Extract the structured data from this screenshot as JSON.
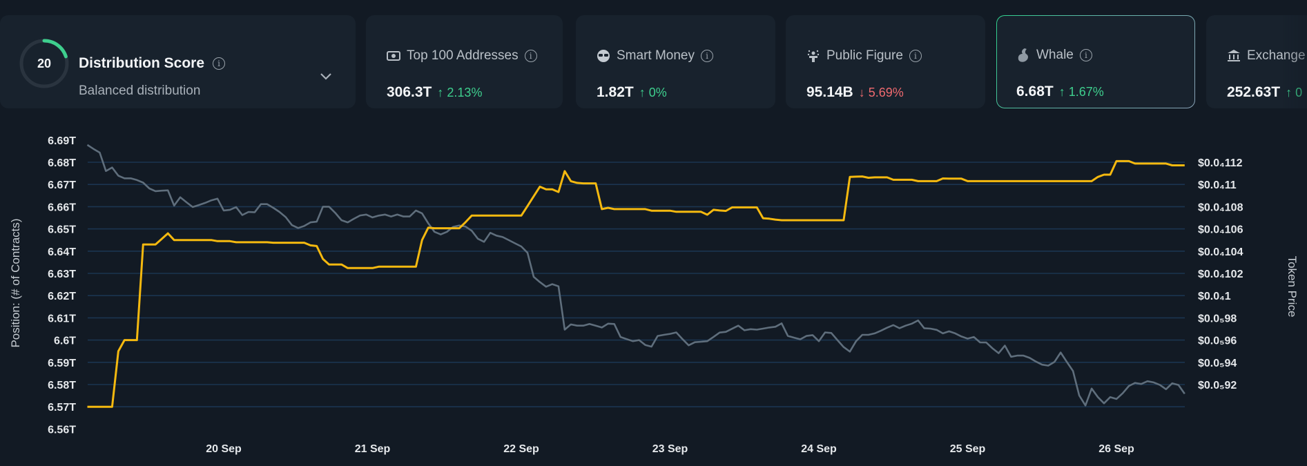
{
  "score_card": {
    "score": "20",
    "score_fraction": 0.2,
    "title": "Distribution Score",
    "subtitle": "Balanced distribution",
    "icon": "chevron-down-icon"
  },
  "cards": [
    {
      "label": "Top 100 Addresses",
      "icon": "banknote-icon",
      "value": "306.3T",
      "change": "2.13%",
      "direction": "up"
    },
    {
      "label": "Smart Money",
      "icon": "sunglasses-icon",
      "value": "1.82T",
      "change": "0%",
      "direction": "up"
    },
    {
      "label": "Public Figure",
      "icon": "podium-icon",
      "value": "95.14B",
      "change": "5.69%",
      "direction": "down"
    },
    {
      "label": "Whale",
      "icon": "whale-icon",
      "value": "6.68T",
      "change": "1.67%",
      "direction": "up",
      "selected": true
    },
    {
      "label": "Exchange",
      "icon": "bank-icon",
      "value": "252.63T",
      "change": "0",
      "direction": "up"
    }
  ],
  "colors": {
    "background": "#121a24",
    "card": "#18222d",
    "up": "#3ecf8e",
    "down": "#f06a6f",
    "position_line": "#f5b90f",
    "price_line": "#5f6e7c",
    "grid": "#1b3550"
  },
  "chart_data": {
    "type": "line",
    "grid": true,
    "ylabel": "Position: (# of Contracts)",
    "ylabel_right": "Token Price",
    "y_ticks": [
      {
        "value": 6.69,
        "label": "6.69T"
      },
      {
        "value": 6.68,
        "label": "6.68T"
      },
      {
        "value": 6.67,
        "label": "6.67T"
      },
      {
        "value": 6.66,
        "label": "6.66T"
      },
      {
        "value": 6.65,
        "label": "6.65T"
      },
      {
        "value": 6.64,
        "label": "6.64T"
      },
      {
        "value": 6.63,
        "label": "6.63T"
      },
      {
        "value": 6.62,
        "label": "6.62T"
      },
      {
        "value": 6.61,
        "label": "6.61T"
      },
      {
        "value": 6.6,
        "label": "6.6T"
      },
      {
        "value": 6.59,
        "label": "6.59T"
      },
      {
        "value": 6.58,
        "label": "6.58T"
      },
      {
        "value": 6.57,
        "label": "6.57T"
      },
      {
        "value": 6.56,
        "label": "6.56T"
      }
    ],
    "ylim": [
      6.56,
      6.69
    ],
    "y_right_ticks": [
      {
        "value": 1.12e-05,
        "label": "$0.0₄112"
      },
      {
        "value": 1.1e-05,
        "label": "$0.0₄11"
      },
      {
        "value": 1.08e-05,
        "label": "$0.0₄108"
      },
      {
        "value": 1.06e-05,
        "label": "$0.0₄106"
      },
      {
        "value": 1.04e-05,
        "label": "$0.0₄104"
      },
      {
        "value": 1.02e-05,
        "label": "$0.0₄102"
      },
      {
        "value": 1e-05,
        "label": "$0.0₄1"
      },
      {
        "value": 9.8e-06,
        "label": "$0.0₅98"
      },
      {
        "value": 9.6e-06,
        "label": "$0.0₅96"
      },
      {
        "value": 9.4e-06,
        "label": "$0.0₅94"
      },
      {
        "value": 9.2e-06,
        "label": "$0.0₅92"
      }
    ],
    "x_ticks": [
      "20 Sep",
      "21 Sep",
      "22 Sep",
      "23 Sep",
      "24 Sep",
      "25 Sep",
      "26 Sep"
    ],
    "x": [
      "19 Sep 02:00",
      "19 Sep 03:00",
      "19 Sep 04:00",
      "19 Sep 05:00",
      "19 Sep 06:00",
      "19 Sep 07:00",
      "19 Sep 08:00",
      "19 Sep 09:00",
      "19 Sep 10:00",
      "19 Sep 11:00",
      "19 Sep 12:00",
      "19 Sep 13:00",
      "19 Sep 14:00",
      "19 Sep 15:00",
      "19 Sep 16:00",
      "19 Sep 17:00",
      "19 Sep 18:00",
      "19 Sep 19:00",
      "19 Sep 20:00",
      "19 Sep 21:00",
      "19 Sep 22:00",
      "19 Sep 23:00",
      "20 Sep 00:00",
      "20 Sep 01:00",
      "20 Sep 02:00",
      "20 Sep 03:00",
      "20 Sep 04:00",
      "20 Sep 05:00",
      "20 Sep 06:00",
      "20 Sep 07:00",
      "20 Sep 08:00",
      "20 Sep 09:00",
      "20 Sep 10:00",
      "20 Sep 11:00",
      "20 Sep 12:00",
      "20 Sep 13:00",
      "20 Sep 14:00",
      "20 Sep 15:00",
      "20 Sep 16:00",
      "20 Sep 17:00",
      "20 Sep 18:00",
      "20 Sep 19:00",
      "20 Sep 20:00",
      "20 Sep 21:00",
      "20 Sep 22:00",
      "20 Sep 23:00",
      "21 Sep 00:00",
      "21 Sep 01:00",
      "21 Sep 02:00",
      "21 Sep 03:00",
      "21 Sep 04:00",
      "21 Sep 05:00",
      "21 Sep 06:00",
      "21 Sep 07:00",
      "21 Sep 08:00",
      "21 Sep 09:00",
      "21 Sep 10:00",
      "21 Sep 11:00",
      "21 Sep 12:00",
      "21 Sep 13:00",
      "21 Sep 14:00",
      "21 Sep 15:00",
      "21 Sep 16:00",
      "21 Sep 17:00",
      "21 Sep 18:00",
      "21 Sep 19:00",
      "21 Sep 20:00",
      "21 Sep 21:00",
      "21 Sep 22:00",
      "21 Sep 23:00",
      "22 Sep 00:00",
      "22 Sep 01:00",
      "22 Sep 02:00",
      "22 Sep 03:00",
      "22 Sep 04:00",
      "22 Sep 05:00",
      "22 Sep 06:00",
      "22 Sep 07:00",
      "22 Sep 08:00",
      "22 Sep 09:00",
      "22 Sep 10:00",
      "22 Sep 11:00",
      "22 Sep 12:00",
      "22 Sep 13:00",
      "22 Sep 14:00",
      "22 Sep 15:00",
      "22 Sep 16:00",
      "22 Sep 17:00",
      "22 Sep 18:00",
      "22 Sep 19:00",
      "22 Sep 20:00",
      "22 Sep 21:00",
      "22 Sep 22:00",
      "22 Sep 23:00",
      "23 Sep 00:00",
      "23 Sep 01:00",
      "23 Sep 02:00",
      "23 Sep 03:00",
      "23 Sep 04:00",
      "23 Sep 05:00",
      "23 Sep 06:00",
      "23 Sep 07:00",
      "23 Sep 08:00",
      "23 Sep 09:00",
      "23 Sep 10:00",
      "23 Sep 11:00",
      "23 Sep 12:00",
      "23 Sep 13:00",
      "23 Sep 14:00",
      "23 Sep 15:00",
      "23 Sep 16:00",
      "23 Sep 17:00",
      "23 Sep 18:00",
      "23 Sep 19:00",
      "23 Sep 20:00",
      "23 Sep 21:00",
      "23 Sep 22:00",
      "23 Sep 23:00",
      "24 Sep 00:00",
      "24 Sep 01:00",
      "24 Sep 02:00",
      "24 Sep 03:00",
      "24 Sep 04:00",
      "24 Sep 05:00",
      "24 Sep 06:00",
      "24 Sep 07:00",
      "24 Sep 08:00",
      "24 Sep 09:00",
      "24 Sep 10:00",
      "24 Sep 11:00",
      "24 Sep 12:00",
      "24 Sep 13:00",
      "24 Sep 14:00",
      "24 Sep 15:00",
      "24 Sep 16:00",
      "24 Sep 17:00",
      "24 Sep 18:00",
      "24 Sep 19:00",
      "24 Sep 20:00",
      "24 Sep 21:00",
      "24 Sep 22:00",
      "24 Sep 23:00",
      "25 Sep 00:00",
      "25 Sep 01:00",
      "25 Sep 02:00",
      "25 Sep 03:00",
      "25 Sep 04:00",
      "25 Sep 05:00",
      "25 Sep 06:00",
      "25 Sep 07:00",
      "25 Sep 08:00",
      "25 Sep 09:00",
      "25 Sep 10:00",
      "25 Sep 11:00",
      "25 Sep 12:00",
      "25 Sep 13:00",
      "25 Sep 14:00",
      "25 Sep 15:00",
      "25 Sep 16:00",
      "25 Sep 17:00",
      "25 Sep 18:00",
      "25 Sep 19:00",
      "25 Sep 20:00",
      "25 Sep 21:00",
      "25 Sep 22:00",
      "25 Sep 23:00",
      "26 Sep 00:00",
      "26 Sep 01:00",
      "26 Sep 02:00",
      "26 Sep 03:00",
      "26 Sep 04:00",
      "26 Sep 05:00",
      "26 Sep 06:00",
      "26 Sep 07:00",
      "26 Sep 08:00",
      "26 Sep 09:00",
      "26 Sep 10:00",
      "26 Sep 11:00"
    ],
    "series": [
      {
        "axis": "left",
        "color": "#f5b90f",
        "values": [
          6.57,
          6.57,
          6.57,
          6.57,
          6.57,
          6.595,
          6.6,
          6.6,
          6.6,
          6.643,
          6.643,
          6.643,
          6.6455,
          6.648,
          6.645,
          6.645,
          6.645,
          6.645,
          6.645,
          6.645,
          6.645,
          6.6445,
          6.6445,
          6.6445,
          6.644,
          6.644,
          6.644,
          6.644,
          6.644,
          6.644,
          6.6438,
          6.6438,
          6.6438,
          6.6438,
          6.6438,
          6.6438,
          6.6426,
          6.6423,
          6.6365,
          6.634,
          6.634,
          6.634,
          6.6324,
          6.6324,
          6.6324,
          6.6324,
          6.6324,
          6.633,
          6.633,
          6.633,
          6.633,
          6.633,
          6.633,
          6.633,
          6.645,
          6.6506,
          6.6503,
          6.6503,
          6.6503,
          6.6503,
          6.6503,
          6.653,
          6.656,
          6.656,
          6.656,
          6.656,
          6.656,
          6.656,
          6.656,
          6.656,
          6.656,
          6.6603,
          6.6647,
          6.669,
          6.6678,
          6.6678,
          6.6666,
          6.676,
          6.6715,
          6.6707,
          6.6705,
          6.6705,
          6.6705,
          6.6589,
          6.6595,
          6.6589,
          6.6589,
          6.6589,
          6.6589,
          6.6589,
          6.6589,
          6.6582,
          6.6582,
          6.6582,
          6.6582,
          6.6577,
          6.6577,
          6.6577,
          6.6577,
          6.6577,
          6.6564,
          6.6586,
          6.6583,
          6.6581,
          6.6597,
          6.6597,
          6.6597,
          6.6597,
          6.6597,
          6.6548,
          6.6546,
          6.6542,
          6.6539,
          6.6539,
          6.6539,
          6.6539,
          6.6539,
          6.6539,
          6.6539,
          6.6539,
          6.6539,
          6.6539,
          6.6539,
          6.6734,
          6.6735,
          6.6736,
          6.673,
          6.6732,
          6.6732,
          6.6732,
          6.6721,
          6.6721,
          6.6721,
          6.6721,
          6.6715,
          6.6715,
          6.6715,
          6.6715,
          6.6727,
          6.6726,
          6.6726,
          6.6726,
          6.6715,
          6.6715,
          6.6715,
          6.6715,
          6.6715,
          6.6715,
          6.6715,
          6.6715,
          6.6715,
          6.6715,
          6.6715,
          6.6715,
          6.6715,
          6.6715,
          6.6715,
          6.6715,
          6.6715,
          6.6715,
          6.6715,
          6.6715,
          6.6715,
          6.6734,
          6.6744,
          6.6744,
          6.6805,
          6.6805,
          6.6805,
          6.6794,
          6.6794,
          6.6794,
          6.6794,
          6.6794,
          6.6794,
          6.6786,
          6.6786,
          6.6786
        ]
      },
      {
        "axis": "right",
        "color": "#5f6e7c",
        "values": [
          1.1356e-05,
          1.132e-05,
          1.1287e-05,
          1.1121e-05,
          1.1153e-05,
          1.1079e-05,
          1.1055e-05,
          1.1055e-05,
          1.104e-05,
          1.1017e-05,
          1.0964e-05,
          1.094e-05,
          1.0944e-05,
          1.0947e-05,
          1.081e-05,
          1.0885e-05,
          1.084e-05,
          1.0797e-05,
          1.0815e-05,
          1.0834e-05,
          1.0857e-05,
          1.0872e-05,
          1.0766e-05,
          1.0772e-05,
          1.0797e-05,
          1.0725e-05,
          1.0753e-05,
          1.075e-05,
          1.0823e-05,
          1.0823e-05,
          1.079e-05,
          1.0753e-05,
          1.0706e-05,
          1.0634e-05,
          1.0608e-05,
          1.0627e-05,
          1.0659e-05,
          1.0665e-05,
          1.08e-05,
          1.08e-05,
          1.0744e-05,
          1.0678e-05,
          1.0659e-05,
          1.0691e-05,
          1.0721e-05,
          1.0729e-05,
          1.0704e-05,
          1.072e-05,
          1.0729e-05,
          1.0712e-05,
          1.0729e-05,
          1.0712e-05,
          1.0712e-05,
          1.0766e-05,
          1.074e-05,
          1.065e-05,
          1.0574e-05,
          1.055e-05,
          1.0574e-05,
          1.0618e-05,
          1.0631e-05,
          1.0621e-05,
          1.0584e-05,
          1.0512e-05,
          1.0484e-05,
          1.0565e-05,
          1.054e-05,
          1.0527e-05,
          1.0499e-05,
          1.047e-05,
          1.0442e-05,
          1.0386e-05,
          1.0169e-05,
          1.0122e-05,
          1.008e-05,
          1.0103e-05,
          1.0084e-05,
          9.694e-06,
          9.741e-06,
          9.73e-06,
          9.73e-06,
          9.745e-06,
          9.73e-06,
          9.713e-06,
          9.748e-06,
          9.745e-06,
          9.628e-06,
          9.609e-06,
          9.59e-06,
          9.6e-06,
          9.556e-06,
          9.541e-06,
          9.637e-06,
          9.647e-06,
          9.656e-06,
          9.669e-06,
          9.609e-06,
          9.553e-06,
          9.581e-06,
          9.585e-06,
          9.59e-06,
          9.628e-06,
          9.668e-06,
          9.674e-06,
          9.702e-06,
          9.73e-06,
          9.688e-06,
          9.698e-06,
          9.694e-06,
          9.703e-06,
          9.713e-06,
          9.72e-06,
          9.75e-06,
          9.637e-06,
          9.622e-06,
          9.607e-06,
          9.637e-06,
          9.645e-06,
          9.59e-06,
          9.669e-06,
          9.664e-06,
          9.6e-06,
          9.537e-06,
          9.496e-06,
          9.59e-06,
          9.647e-06,
          9.647e-06,
          9.66e-06,
          9.684e-06,
          9.711e-06,
          9.735e-06,
          9.707e-06,
          9.73e-06,
          9.748e-06,
          9.777e-06,
          9.707e-06,
          9.703e-06,
          9.692e-06,
          9.66e-06,
          9.679e-06,
          9.66e-06,
          9.632e-06,
          9.613e-06,
          9.628e-06,
          9.579e-06,
          9.578e-06,
          9.526e-06,
          9.482e-06,
          9.55e-06,
          9.45e-06,
          9.46e-06,
          9.46e-06,
          9.44e-06,
          9.407e-06,
          9.379e-06,
          9.37e-06,
          9.403e-06,
          9.488e-06,
          9.403e-06,
          9.322e-06,
          9.102e-06,
          9.012e-06,
          9.164e-06,
          9.087e-06,
          9.031e-06,
          9.087e-06,
          9.07e-06,
          9.121e-06,
          9.187e-06,
          9.215e-06,
          9.205e-06,
          9.23e-06,
          9.219e-06,
          9.196e-06,
          9.158e-06,
          9.211e-06,
          9.196e-06,
          9.117e-06
        ]
      }
    ]
  }
}
